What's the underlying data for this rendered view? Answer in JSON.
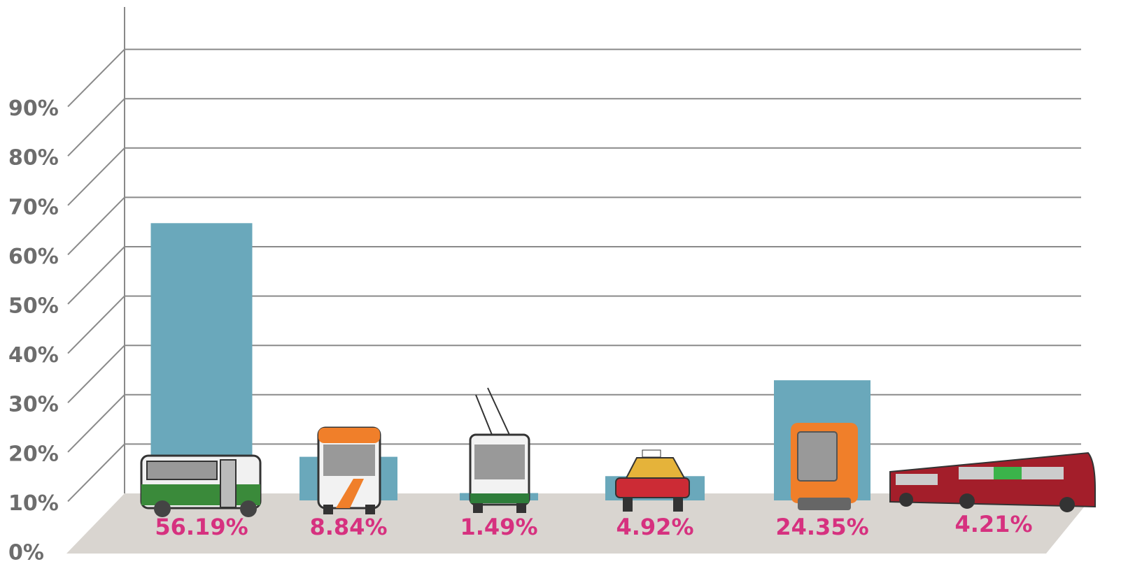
{
  "chart_data": {
    "type": "bar",
    "categories": [
      null,
      null,
      null,
      null,
      null,
      null
    ],
    "values": [
      56.19,
      8.84,
      1.49,
      4.92,
      24.35,
      4.21
    ],
    "value_labels": [
      "56.19%",
      "8.84%",
      "1.49%",
      "4.92%",
      "24.35%",
      "4.21%"
    ],
    "color": "#6aa8bb",
    "value_label_color": "#d6317f",
    "ylim": [
      0,
      100
    ],
    "yticks": [
      {
        "value": 0,
        "label": "0%"
      },
      {
        "value": 10,
        "label": "10%"
      },
      {
        "value": 20,
        "label": "20%"
      },
      {
        "value": 30,
        "label": "30%"
      },
      {
        "value": 40,
        "label": "40%"
      },
      {
        "value": 50,
        "label": "50%"
      },
      {
        "value": 60,
        "label": "60%"
      },
      {
        "value": 70,
        "label": "70%"
      },
      {
        "value": 80,
        "label": "80%"
      },
      {
        "value": 90,
        "label": "90%"
      }
    ],
    "grid": true
  }
}
